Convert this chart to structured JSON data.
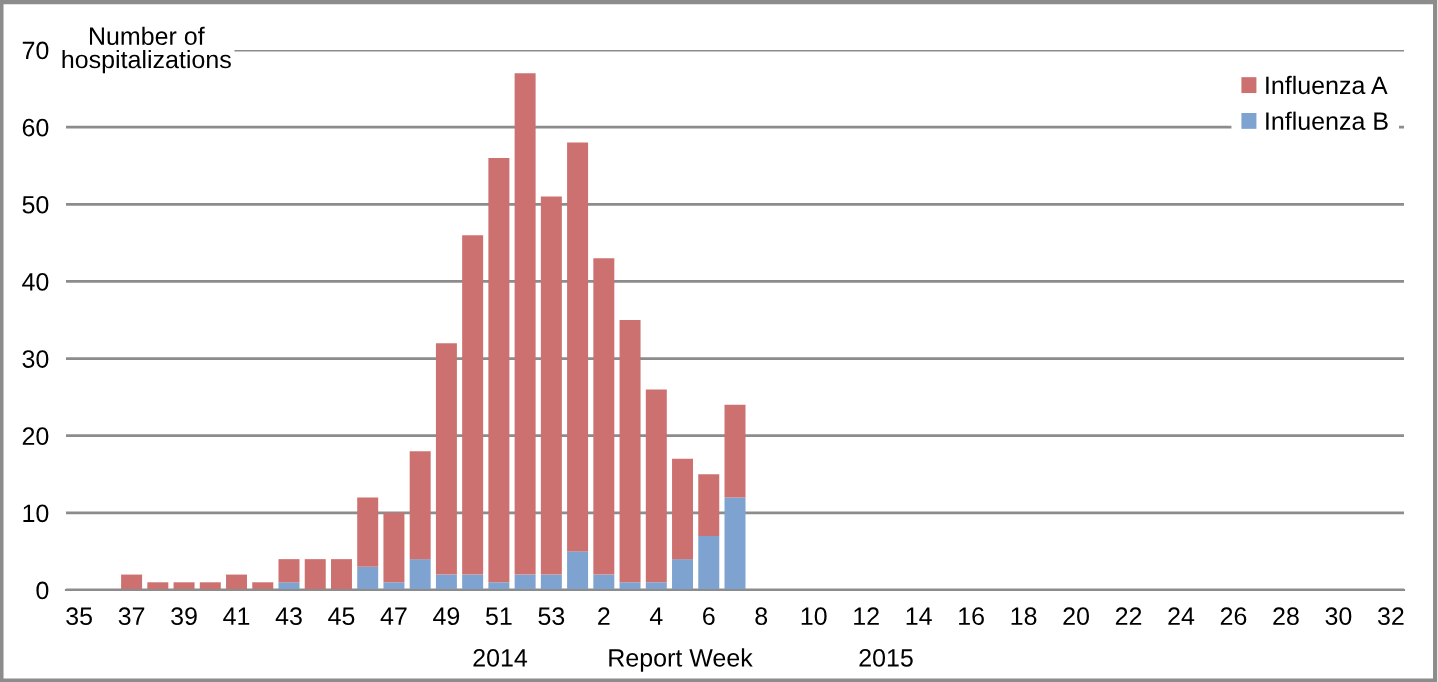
{
  "chart_data": {
    "type": "bar",
    "stacked": true,
    "ylabel": "Number of hospitalizations",
    "categories": [
      "35",
      null,
      "37",
      null,
      "39",
      null,
      "41",
      null,
      "43",
      null,
      "45",
      null,
      "47",
      null,
      "49",
      null,
      "51",
      null,
      "53",
      null,
      "2",
      null,
      "4",
      null,
      "6",
      null,
      "8",
      null,
      "10",
      null,
      "12",
      null,
      "14",
      null,
      "16",
      null,
      "18",
      null,
      "20",
      null,
      "22",
      null,
      "24",
      null,
      "26",
      null,
      "28",
      null,
      "30",
      null,
      "32"
    ],
    "series": [
      {
        "name": "Influenza B",
        "color": "#7ea3d0",
        "values": [
          0,
          0,
          0,
          0,
          0,
          0,
          0,
          0,
          1,
          0,
          0,
          3,
          1,
          4,
          2,
          2,
          1,
          2,
          2,
          5,
          2,
          1,
          1,
          4,
          7,
          12,
          0,
          0,
          0,
          0,
          0,
          0,
          0,
          0,
          0,
          0,
          0,
          0,
          0,
          0,
          0,
          0,
          0,
          0,
          0,
          0,
          0,
          0,
          0,
          0,
          0
        ]
      },
      {
        "name": "Influenza A",
        "color": "#cd7070",
        "values": [
          0,
          0,
          2,
          1,
          1,
          1,
          2,
          1,
          3,
          4,
          4,
          9,
          9,
          14,
          30,
          44,
          55,
          65,
          49,
          53,
          41,
          34,
          25,
          13,
          8,
          12,
          0,
          0,
          0,
          0,
          0,
          0,
          0,
          0,
          0,
          0,
          0,
          0,
          0,
          0,
          0,
          0,
          0,
          0,
          0,
          0,
          0,
          0,
          0,
          0,
          0
        ]
      }
    ],
    "ylim": [
      0,
      70
    ],
    "yticks": [
      0,
      10,
      20,
      30,
      40,
      50,
      60,
      70
    ],
    "grid": "y",
    "legend": "top right",
    "annotations": [
      "2014",
      "Report Week",
      "2015"
    ]
  }
}
